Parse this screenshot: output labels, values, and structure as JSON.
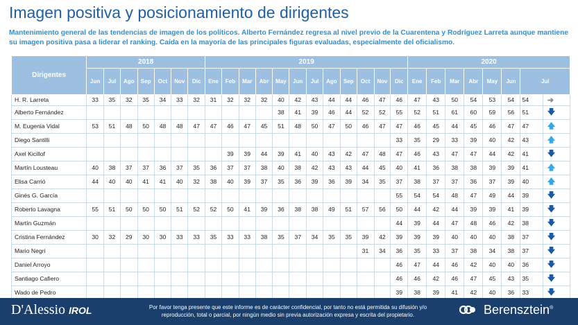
{
  "title": "Imagen positiva y posicionamiento de dirigentes",
  "subtitle": "Mantenimiento general de las tendencias de imagen de los políticos. Alberto Fernández regresa al nivel previo de la Cuarentena y Rodríguez Larreta aunque mantiene su imagen positiva pasa a liderar el ranking. Caída en la mayoría de las principales figuras evaluadas, especialmente del oficialismo.",
  "table": {
    "header_label": "Dirigentes",
    "years": [
      {
        "label": "2018",
        "span": 7
      },
      {
        "label": "2019",
        "span": 12
      },
      {
        "label": "2020",
        "span": 7
      }
    ],
    "months": [
      "Jun",
      "Jul",
      "Ago",
      "Sep",
      "Oct",
      "Nov",
      "Dic",
      "Ene",
      "Feb",
      "Mar",
      "Abr",
      "May",
      "Jun",
      "Jul",
      "Ago",
      "Sep",
      "Oct",
      "Nov",
      "Dic",
      "Ene",
      "Feb",
      "Mar",
      "Abr",
      "May",
      "Jun",
      "Jul"
    ],
    "rows": [
      {
        "name": "H. R. Larreta",
        "values": [
          "33",
          "35",
          "32",
          "35",
          "34",
          "33",
          "32",
          "31",
          "32",
          "32",
          "32",
          "40",
          "42",
          "43",
          "44",
          "44",
          "46",
          "47",
          "46",
          "47",
          "43",
          "50",
          "54",
          "53",
          "54",
          "54"
        ],
        "trend": "gray-right"
      },
      {
        "name": "Alberto Fernández",
        "values": [
          "",
          "",
          "",
          "",
          "",
          "",
          "",
          "",
          "",
          "",
          "",
          "38",
          "41",
          "39",
          "46",
          "44",
          "52",
          "52",
          "55",
          "52",
          "51",
          "61",
          "60",
          "59",
          "56",
          "51"
        ],
        "trend": "blue-down"
      },
      {
        "name": "M. Eugenia Vidal",
        "values": [
          "53",
          "51",
          "48",
          "50",
          "48",
          "48",
          "47",
          "47",
          "46",
          "47",
          "45",
          "51",
          "48",
          "50",
          "47",
          "50",
          "46",
          "47",
          "47",
          "46",
          "45",
          "44",
          "45",
          "46",
          "47",
          "47"
        ],
        "trend": "cyan-up"
      },
      {
        "name": "Diego Santilli",
        "values": [
          "",
          "",
          "",
          "",
          "",
          "",
          "",
          "",
          "",
          "",
          "",
          "",
          "",
          "",
          "",
          "",
          "",
          "",
          "33",
          "35",
          "29",
          "33",
          "39",
          "40",
          "42",
          "43"
        ],
        "trend": "cyan-up"
      },
      {
        "name": "Axel Kicillof",
        "values": [
          "",
          "",
          "",
          "",
          "",
          "",
          "",
          "",
          "39",
          "39",
          "44",
          "39",
          "41",
          "40",
          "43",
          "42",
          "47",
          "48",
          "47",
          "46",
          "43",
          "47",
          "47",
          "44",
          "42",
          "41"
        ],
        "trend": "blue-down"
      },
      {
        "name": "Martín Lousteau",
        "values": [
          "40",
          "38",
          "37",
          "37",
          "36",
          "37",
          "35",
          "36",
          "37",
          "37",
          "38",
          "40",
          "38",
          "42",
          "43",
          "43",
          "44",
          "45",
          "40",
          "41",
          "36",
          "38",
          "38",
          "39",
          "39",
          "41"
        ],
        "trend": "cyan-up"
      },
      {
        "name": "Elisa Carrió",
        "values": [
          "44",
          "40",
          "40",
          "41",
          "41",
          "40",
          "32",
          "38",
          "40",
          "39",
          "37",
          "35",
          "36",
          "39",
          "36",
          "39",
          "34",
          "35",
          "37",
          "38",
          "37",
          "37",
          "36",
          "37",
          "39",
          "40"
        ],
        "trend": "cyan-up"
      },
      {
        "name": "Ginés G. García",
        "values": [
          "",
          "",
          "",
          "",
          "",
          "",
          "",
          "",
          "",
          "",
          "",
          "",
          "",
          "",
          "",
          "",
          "",
          "",
          "55",
          "54",
          "54",
          "48",
          "47",
          "49",
          "44",
          "39"
        ],
        "trend": "blue-down"
      },
      {
        "name": "Roberto Lavagna",
        "values": [
          "55",
          "51",
          "50",
          "50",
          "50",
          "51",
          "52",
          "52",
          "50",
          "41",
          "39",
          "36",
          "38",
          "38",
          "49",
          "51",
          "57",
          "56",
          "50",
          "44",
          "42",
          "44",
          "39",
          "39",
          "41",
          "39"
        ],
        "trend": "blue-down"
      },
      {
        "name": "Martín Guzmán",
        "values": [
          "",
          "",
          "",
          "",
          "",
          "",
          "",
          "",
          "",
          "",
          "",
          "",
          "",
          "",
          "",
          "",
          "",
          "",
          "44",
          "39",
          "44",
          "47",
          "48",
          "46",
          "42",
          "38"
        ],
        "trend": "blue-down"
      },
      {
        "name": "Cristina Fernández",
        "values": [
          "30",
          "32",
          "29",
          "30",
          "30",
          "33",
          "33",
          "35",
          "33",
          "33",
          "38",
          "35",
          "37",
          "34",
          "35",
          "35",
          "39",
          "42",
          "39",
          "39",
          "39",
          "40",
          "40",
          "40",
          "38",
          "37"
        ],
        "trend": "blue-down"
      },
      {
        "name": "Mario Negri",
        "values": [
          "",
          "",
          "",
          "",
          "",
          "",
          "",
          "",
          "",
          "",
          "",
          "",
          "",
          "",
          "",
          "",
          "31",
          "34",
          "36",
          "35",
          "33",
          "37",
          "38",
          "34",
          "38",
          "37"
        ],
        "trend": "blue-down"
      },
      {
        "name": "Daniel Arroyo",
        "values": [
          "",
          "",
          "",
          "",
          "",
          "",
          "",
          "",
          "",
          "",
          "",
          "",
          "",
          "",
          "",
          "",
          "",
          "",
          "46",
          "47",
          "44",
          "46",
          "42",
          "40",
          "40",
          "36"
        ],
        "trend": "blue-down"
      },
      {
        "name": "Santiago Cafiero",
        "values": [
          "",
          "",
          "",
          "",
          "",
          "",
          "",
          "",
          "",
          "",
          "",
          "",
          "",
          "",
          "",
          "",
          "",
          "",
          "46",
          "46",
          "42",
          "46",
          "47",
          "45",
          "43",
          "35"
        ],
        "trend": "blue-down"
      },
      {
        "name": "Wado de Pedro",
        "values": [
          "",
          "",
          "",
          "",
          "",
          "",
          "",
          "",
          "",
          "",
          "",
          "",
          "",
          "",
          "",
          "",
          "",
          "",
          "39",
          "38",
          "39",
          "41",
          "42",
          "40",
          "36",
          "33"
        ],
        "trend": "blue-down"
      }
    ]
  },
  "footer": {
    "logo_left_main": "D'Alessio",
    "logo_left_sub": "IROL",
    "disclaimer": "Por favor tenga presente que este informe es de carácter confidencial, por tanto no está permitida su difusión y/o reproducción, total o parcial, por ningún medio sin previa autorización expresa y escrita del propietario.",
    "logo_right": "Berensztein",
    "logo_right_mark": "®",
    "colors": {
      "background": "#1b3f6d",
      "header": "#9dc0e2",
      "title": "#1f5fa3",
      "subtitle": "#2f8fd3"
    }
  }
}
